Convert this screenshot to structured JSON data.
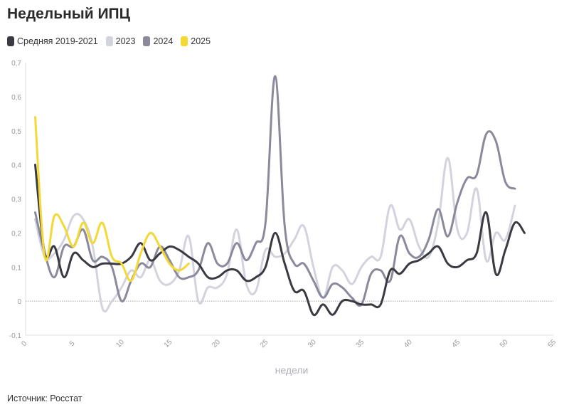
{
  "title": "Недельный ИПЦ",
  "source": "Источник: Росстат",
  "chart_data": {
    "type": "line",
    "title": "Недельный ИПЦ",
    "xlabel": "недели",
    "ylabel": "",
    "xlim": [
      0,
      55
    ],
    "ylim": [
      -0.1,
      0.7
    ],
    "xticks": [
      0,
      5,
      10,
      15,
      20,
      25,
      30,
      35,
      40,
      45,
      50,
      55
    ],
    "xtick_labels": [
      "0",
      "5",
      "10",
      "15",
      "20",
      "25",
      "30",
      "35",
      "40",
      "45",
      "50",
      "55"
    ],
    "yticks": [
      -0.1,
      0,
      0.1,
      0.2,
      0.3,
      0.4,
      0.5,
      0.6,
      0.7
    ],
    "ytick_labels": [
      "-0,1",
      "0",
      "0,1",
      "0,2",
      "0,3",
      "0,4",
      "0,5",
      "0,6",
      "0,7"
    ],
    "zero_line": true,
    "series": [
      {
        "name": "Средняя 2019-2021",
        "color": "#3a3a42",
        "x": [
          1,
          2,
          3,
          4,
          5,
          6,
          7,
          8,
          9,
          10,
          11,
          12,
          13,
          14,
          15,
          16,
          17,
          18,
          19,
          20,
          21,
          22,
          23,
          24,
          25,
          26,
          27,
          28,
          29,
          30,
          31,
          32,
          33,
          34,
          35,
          36,
          37,
          38,
          39,
          40,
          41,
          42,
          43,
          44,
          45,
          46,
          47,
          48,
          49,
          50,
          51,
          52
        ],
        "y": [
          0.4,
          0.14,
          0.16,
          0.07,
          0.14,
          0.12,
          0.1,
          0.11,
          0.11,
          0.11,
          0.13,
          0.17,
          0.12,
          0.14,
          0.16,
          0.15,
          0.13,
          0.11,
          0.07,
          0.07,
          0.09,
          0.09,
          0.06,
          0.07,
          0.1,
          0.2,
          0.11,
          0.03,
          0.03,
          -0.04,
          -0.01,
          -0.04,
          0.0,
          0.0,
          -0.01,
          -0.01,
          -0.01,
          0.09,
          0.08,
          0.11,
          0.12,
          0.14,
          0.16,
          0.11,
          0.1,
          0.12,
          0.14,
          0.26,
          0.08,
          0.15,
          0.23,
          0.2
        ]
      },
      {
        "name": "2023",
        "color": "#d3d3de",
        "x": [
          1,
          2,
          3,
          4,
          5,
          6,
          7,
          8,
          9,
          10,
          11,
          12,
          13,
          14,
          15,
          16,
          17,
          18,
          19,
          20,
          21,
          22,
          23,
          24,
          25,
          26,
          27,
          28,
          29,
          30,
          31,
          32,
          33,
          34,
          35,
          36,
          37,
          38,
          39,
          40,
          41,
          42,
          43,
          44,
          45,
          46,
          47,
          48,
          49,
          50,
          51
        ],
        "y": [
          0.24,
          0.13,
          0.14,
          0.18,
          0.25,
          0.24,
          0.16,
          -0.02,
          0.0,
          0.04,
          0.09,
          0.07,
          0.12,
          0.06,
          0.05,
          0.09,
          0.19,
          0.0,
          0.04,
          0.04,
          0.08,
          0.21,
          0.05,
          0.03,
          0.15,
          0.13,
          0.14,
          0.18,
          0.22,
          0.1,
          0.01,
          0.1,
          0.09,
          0.05,
          0.1,
          0.13,
          0.13,
          0.28,
          0.21,
          0.24,
          0.16,
          0.13,
          0.23,
          0.42,
          0.21,
          0.2,
          0.33,
          0.12,
          0.2,
          0.18,
          0.28
        ]
      },
      {
        "name": "2024",
        "color": "#8a8a9c",
        "x": [
          1,
          2,
          3,
          4,
          5,
          6,
          7,
          8,
          9,
          10,
          11,
          12,
          13,
          14,
          15,
          16,
          17,
          18,
          19,
          20,
          21,
          22,
          23,
          24,
          25,
          26,
          27,
          28,
          29,
          30,
          31,
          32,
          33,
          34,
          35,
          36,
          37,
          38,
          39,
          40,
          41,
          42,
          43,
          44,
          45,
          46,
          47,
          48,
          49,
          50,
          51
        ],
        "y": [
          0.26,
          0.14,
          0.07,
          0.16,
          0.16,
          0.21,
          0.12,
          0.13,
          0.1,
          0.0,
          0.06,
          0.11,
          0.1,
          0.16,
          0.12,
          0.07,
          0.07,
          0.09,
          0.17,
          0.11,
          0.11,
          0.17,
          0.12,
          0.17,
          0.23,
          0.66,
          0.22,
          0.11,
          0.11,
          0.06,
          0.01,
          0.05,
          0.04,
          0.01,
          -0.01,
          0.08,
          0.09,
          0.06,
          0.19,
          0.14,
          0.13,
          0.18,
          0.27,
          0.19,
          0.29,
          0.36,
          0.37,
          0.49,
          0.47,
          0.35,
          0.33
        ]
      },
      {
        "name": "2025",
        "color": "#f4d836",
        "x": [
          1,
          2,
          3,
          4,
          5,
          6,
          7,
          8,
          9,
          10,
          11,
          12,
          13,
          14,
          15,
          16,
          17
        ],
        "y": [
          0.54,
          0.13,
          0.25,
          0.22,
          0.16,
          0.23,
          0.17,
          0.23,
          0.13,
          0.11,
          0.06,
          0.14,
          0.2,
          0.16,
          0.11,
          0.09,
          0.11
        ]
      }
    ]
  }
}
